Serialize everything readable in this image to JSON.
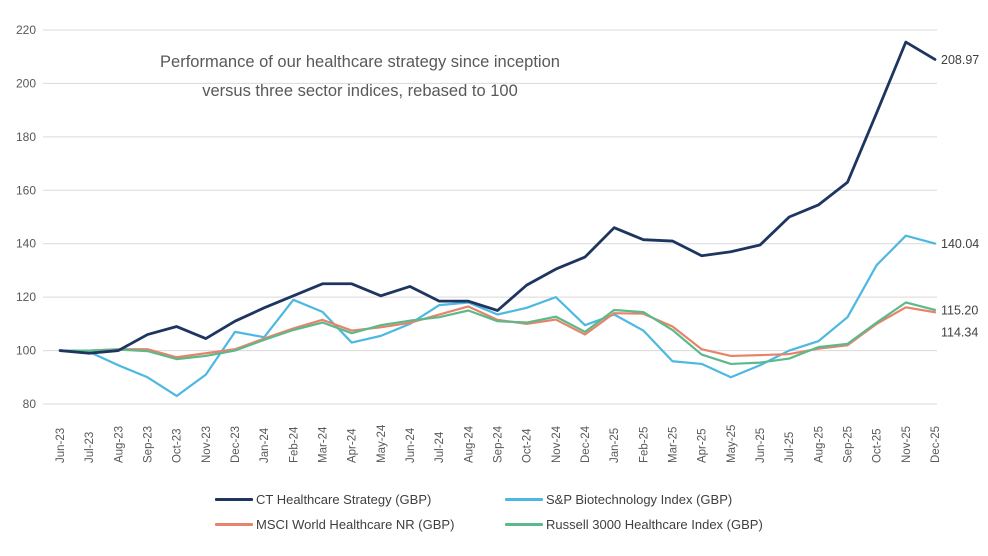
{
  "chart_data": {
    "type": "line",
    "title": "Performance of our healthcare strategy since inception versus three sector indices, rebased to 100",
    "title_lines": [
      "Performance of our healthcare strategy since inception",
      "versus three sector indices, rebased to 100"
    ],
    "categories": [
      "Jun-23",
      "Jul-23",
      "Aug-23",
      "Sep-23",
      "Oct-23",
      "Nov-23",
      "Dec-23",
      "Jan-24",
      "Feb-24",
      "Mar-24",
      "Apr-24",
      "May-24",
      "Jun-24",
      "Jul-24",
      "Aug-24",
      "Sep-24",
      "Oct-24",
      "Nov-24",
      "Dec-24",
      "Jan-25",
      "Feb-25",
      "Mar-25",
      "Apr-25",
      "May-25",
      "Jun-25",
      "Jul-25",
      "Aug-25",
      "Sep-25",
      "Oct-25",
      "Nov-25",
      "Dec-25"
    ],
    "ylim": [
      80,
      220
    ],
    "yticks": [
      220,
      200,
      180,
      160,
      140,
      120,
      100,
      80
    ],
    "grid": "horizontal",
    "legend_position": "bottom",
    "xlabel": "",
    "ylabel": "",
    "series": [
      {
        "name": "CT Healthcare Strategy (GBP)",
        "color": "#1e3560",
        "end_label": "208.97",
        "values": [
          100,
          99,
          100,
          106,
          109,
          104.5,
          111,
          116,
          120.5,
          125,
          125,
          120.5,
          124,
          118.5,
          118.5,
          115,
          124.5,
          130.5,
          135,
          146,
          141.5,
          141,
          135.5,
          137,
          139.5,
          150,
          154.5,
          163,
          189,
          215.5,
          208.97
        ]
      },
      {
        "name": "S&P Biotechnology Index (GBP)",
        "color": "#4db8e2",
        "end_label": "140.04",
        "values": [
          100,
          99.5,
          94.5,
          90,
          83,
          91,
          107,
          105,
          119,
          114.5,
          103,
          105.5,
          110,
          117,
          118,
          113.5,
          116,
          120,
          109.5,
          113.5,
          107.5,
          96,
          95,
          90,
          94.5,
          100,
          103.5,
          112.5,
          132,
          143,
          140.04
        ]
      },
      {
        "name": "MSCI World Healthcare NR (GBP)",
        "color": "#e8836a",
        "end_label": "114.34",
        "values": [
          100,
          100,
          100.5,
          100.5,
          97.5,
          99,
          100.5,
          104.5,
          108.3,
          111.5,
          107.5,
          108.7,
          110.4,
          113.5,
          116.5,
          111.5,
          110,
          111.6,
          106,
          114,
          113.8,
          109,
          100.5,
          98,
          98.3,
          98.7,
          100.7,
          102,
          110,
          116.2,
          114.34
        ]
      },
      {
        "name": "Russell 3000 Healthcare Index (GBP)",
        "color": "#5cb98c",
        "end_label": "115.20",
        "values": [
          100,
          100,
          100.4,
          99.8,
          96.8,
          98,
          100,
          104,
          107.7,
          110.5,
          106.5,
          109.5,
          111.2,
          112.5,
          115,
          111,
          110.5,
          112.7,
          107,
          115.2,
          114.4,
          107.7,
          98.5,
          95,
          95.5,
          97,
          101.3,
          102.5,
          110.5,
          118,
          115.2
        ]
      }
    ]
  }
}
